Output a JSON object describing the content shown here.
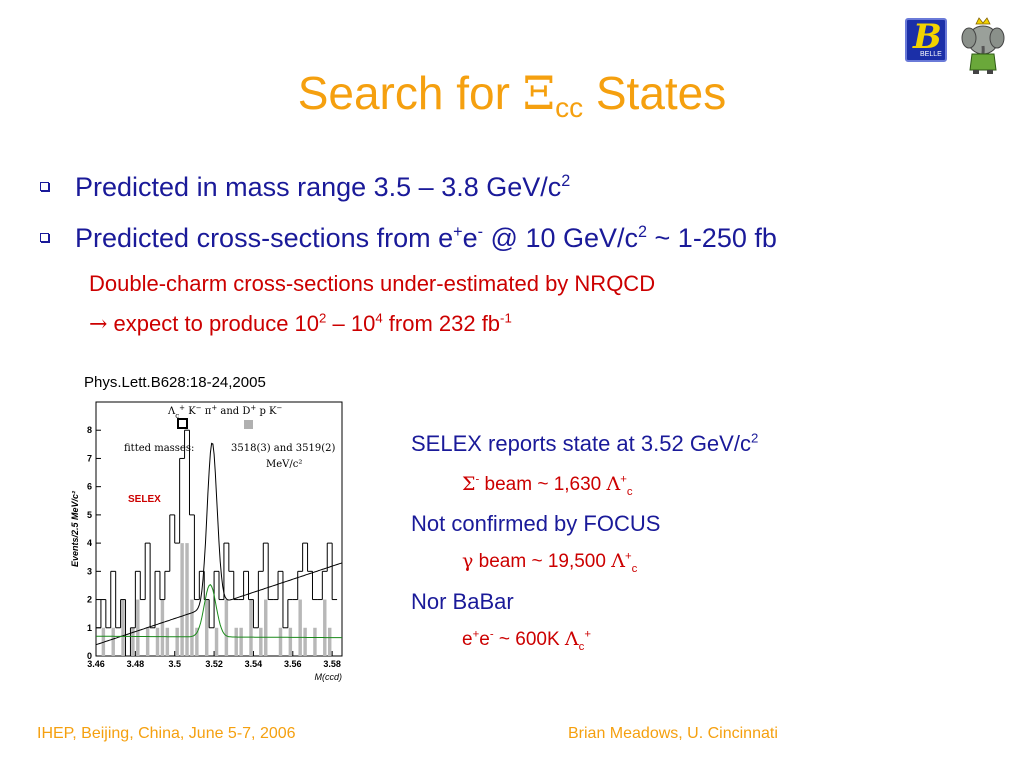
{
  "slide": {
    "title": {
      "before": "Search for ",
      "symbol": "Ξ",
      "subscript": "cc",
      "after": " States"
    },
    "bullets": [
      {
        "text": "Predicted in mass range 3.5 – 3.8 GeV/c",
        "sup": "2"
      },
      {
        "p1": "Predicted cross-sections from e",
        "s1": "+",
        "p2": "e",
        "s2": "-",
        "p3": " @ 10 GeV/c",
        "s3": "2",
        "p4": " ~ 1-250 fb"
      }
    ],
    "sub_items": [
      {
        "text": "Double-charm cross-sections under-estimated by NRQCD"
      },
      {
        "arrow": "→",
        "p1": " expect to produce 10",
        "s1": "2",
        "p2": " – 10",
        "s2": "4",
        "p3": " from 232 fb",
        "s3": "-1"
      }
    ],
    "reference": "Phys.Lett.B628:18-24,2005",
    "right_panel": {
      "item1": {
        "text": "SELEX reports state at 3.52 GeV/c",
        "sup": "2"
      },
      "item1_sub": {
        "sym1": "Σ",
        "s1": "-",
        "p1": " beam ~ 1,630 ",
        "sym2": "Λ",
        "s2": "+",
        "sub2": "c"
      },
      "item2": {
        "text": "Not confirmed by FOCUS"
      },
      "item2_sub": {
        "sym1": "γ",
        "p1": " beam ~ 19,500 ",
        "sym2": "Λ",
        "s2": "+",
        "sub2": "c"
      },
      "item3": {
        "text": "Nor BaBar"
      },
      "item3_sub": {
        "p1": "e",
        "s1": "+",
        "p2": "e",
        "s2": "-",
        "p3": " ~ 600K ",
        "sym2": "Λ",
        "sub2": "c",
        "s3": "+"
      }
    },
    "footer": {
      "left": "IHEP, Beijing, China, June 5-7, 2006",
      "right": "Brian Meadows, U. Cincinnati"
    },
    "logo": {
      "letter": "B",
      "text": "BELLE"
    }
  },
  "chart_data": {
    "type": "bar",
    "ylabel": "Events/2.5 MeV/c²",
    "xlabel": "M(ccd)",
    "x_ticks": [
      "3.46",
      "3.48",
      "3.5",
      "3.52",
      "3.54",
      "3.56",
      "3.58"
    ],
    "y_ticks": [
      "0",
      "1",
      "2",
      "3",
      "4",
      "5",
      "6",
      "7",
      "8"
    ],
    "xlim": [
      3.46,
      3.585
    ],
    "ylim": [
      0,
      9
    ],
    "annotations": {
      "legend_line1_a": "Λ",
      "legend_line1_sub": "c",
      "legend_line1_sup": "+",
      "legend_line1_b": "K",
      "legend_line1_sup2": "−",
      "legend_line1_c": "π",
      "legend_line1_sup3": "+",
      "legend_line1_d": "and D",
      "legend_line1_sup4": "+",
      "legend_line1_e": "p K",
      "legend_line1_sup5": "−",
      "fitted": "fitted masses:",
      "masses": "3518(3) and 3519(2)",
      "units": "MeV/c²",
      "selex": "SELEX"
    },
    "bin_width": 0.0025,
    "series": [
      {
        "style": "outline",
        "values": [
          1,
          2,
          1,
          3,
          1,
          2,
          0,
          1,
          3,
          2,
          4,
          1,
          3,
          2,
          3,
          5,
          4,
          7,
          8,
          5,
          2,
          3,
          2,
          1,
          3,
          2,
          4,
          3,
          2,
          2,
          3,
          2,
          1,
          3,
          4,
          2,
          2,
          3,
          1,
          2,
          2,
          3,
          4,
          3,
          2,
          2,
          3,
          4,
          2
        ]
      },
      {
        "style": "filled",
        "values": [
          0,
          1,
          0,
          1,
          0,
          2,
          0,
          1,
          2,
          0,
          1,
          0,
          1,
          2,
          1,
          0,
          1,
          4,
          4,
          2,
          1,
          0,
          2,
          0,
          1,
          0,
          2,
          0,
          1,
          1,
          0,
          2,
          0,
          1,
          2,
          0,
          0,
          1,
          0,
          1,
          0,
          2,
          1,
          0,
          1,
          0,
          2,
          1,
          0
        ]
      }
    ],
    "fit_outline": {
      "peak_mass": 3.519,
      "peak_height": 5.8,
      "sigma": 0.0025,
      "bg_start": 0.4,
      "bg_end": 3.3
    },
    "fit_filled": {
      "peak_mass": 3.518,
      "peak_height": 1.85,
      "sigma": 0.003,
      "bg_start": 0.7,
      "bg_end": 0.65
    }
  }
}
